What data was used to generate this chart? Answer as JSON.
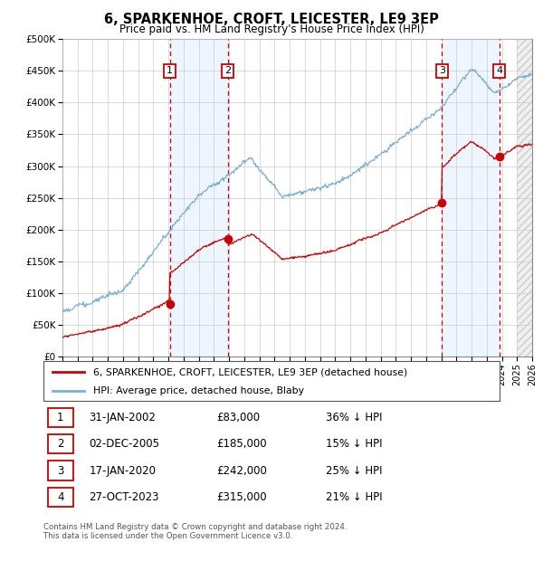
{
  "title": "6, SPARKENHOE, CROFT, LEICESTER, LE9 3EP",
  "subtitle": "Price paid vs. HM Land Registry's House Price Index (HPI)",
  "hpi_label": "HPI: Average price, detached house, Blaby",
  "property_label": "6, SPARKENHOE, CROFT, LEICESTER, LE9 3EP (detached house)",
  "footer": "Contains HM Land Registry data © Crown copyright and database right 2024.\nThis data is licensed under the Open Government Licence v3.0.",
  "hpi_color": "#7bafd4",
  "price_color": "#cc0000",
  "sale_color": "#cc0000",
  "dashed_color": "#cc0000",
  "shaded_color": "#ddeeff",
  "ylim": [
    0,
    500000
  ],
  "yticks": [
    0,
    50000,
    100000,
    150000,
    200000,
    250000,
    300000,
    350000,
    400000,
    450000,
    500000
  ],
  "ytick_labels": [
    "£0",
    "£50K",
    "£100K",
    "£150K",
    "£200K",
    "£250K",
    "£300K",
    "£350K",
    "£400K",
    "£450K",
    "£500K"
  ],
  "sales": [
    {
      "num": 1,
      "date": "31-JAN-2002",
      "price": 83000,
      "pct": "36% ↓ HPI",
      "x_year": 2002.08
    },
    {
      "num": 2,
      "date": "02-DEC-2005",
      "price": 185000,
      "pct": "15% ↓ HPI",
      "x_year": 2005.92
    },
    {
      "num": 3,
      "date": "17-JAN-2020",
      "price": 242000,
      "pct": "25% ↓ HPI",
      "x_year": 2020.05
    },
    {
      "num": 4,
      "date": "27-OCT-2023",
      "price": 315000,
      "pct": "21% ↓ HPI",
      "x_year": 2023.83
    }
  ],
  "x_start": 1995,
  "x_end": 2026,
  "hatch_start": 2025,
  "xticks": [
    1995,
    1996,
    1997,
    1998,
    1999,
    2000,
    2001,
    2002,
    2003,
    2004,
    2005,
    2006,
    2007,
    2008,
    2009,
    2010,
    2011,
    2012,
    2013,
    2014,
    2015,
    2016,
    2017,
    2018,
    2019,
    2020,
    2021,
    2022,
    2023,
    2024,
    2025,
    2026
  ]
}
